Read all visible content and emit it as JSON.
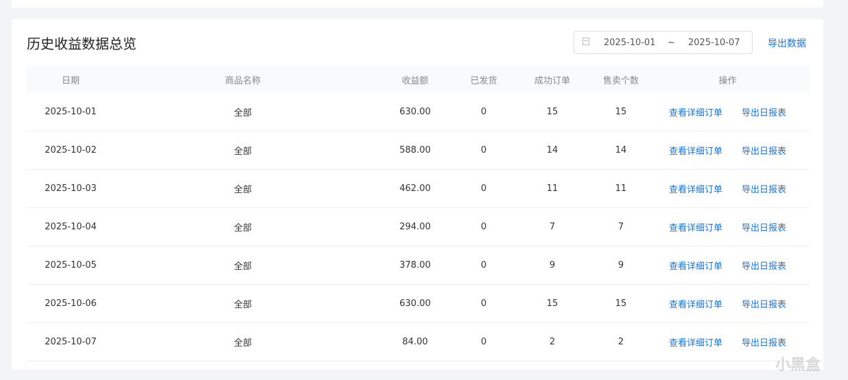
{
  "title": "历史收益数据总览",
  "date_range": {
    "start": "2025-10-01",
    "separator": "~",
    "end": "2025-10-07",
    "icon": "calendar-icon"
  },
  "export_label": "导出数据",
  "columns": [
    "日期",
    "商品名称",
    "收益额",
    "已发货",
    "成功订单",
    "售卖个数",
    "操作"
  ],
  "rows": [
    {
      "date": "2025-10-01",
      "product": "全部",
      "revenue": "630.00",
      "shipped": "0",
      "orders": "15",
      "sold": "15"
    },
    {
      "date": "2025-10-02",
      "product": "全部",
      "revenue": "588.00",
      "shipped": "0",
      "orders": "14",
      "sold": "14"
    },
    {
      "date": "2025-10-03",
      "product": "全部",
      "revenue": "462.00",
      "shipped": "0",
      "orders": "11",
      "sold": "11"
    },
    {
      "date": "2025-10-04",
      "product": "全部",
      "revenue": "294.00",
      "shipped": "0",
      "orders": "7",
      "sold": "7"
    },
    {
      "date": "2025-10-05",
      "product": "全部",
      "revenue": "378.00",
      "shipped": "0",
      "orders": "9",
      "sold": "9"
    },
    {
      "date": "2025-10-06",
      "product": "全部",
      "revenue": "630.00",
      "shipped": "0",
      "orders": "15",
      "sold": "15"
    },
    {
      "date": "2025-10-07",
      "product": "全部",
      "revenue": "84.00",
      "shipped": "0",
      "orders": "2",
      "sold": "2"
    }
  ],
  "actions": {
    "view": "查看详细订单",
    "export_daily": "导出日报表"
  },
  "watermark": "小黑盒",
  "colors": {
    "link": "#1a73d9",
    "background": "#f3f4f6",
    "header_bg": "#f8fafc"
  }
}
